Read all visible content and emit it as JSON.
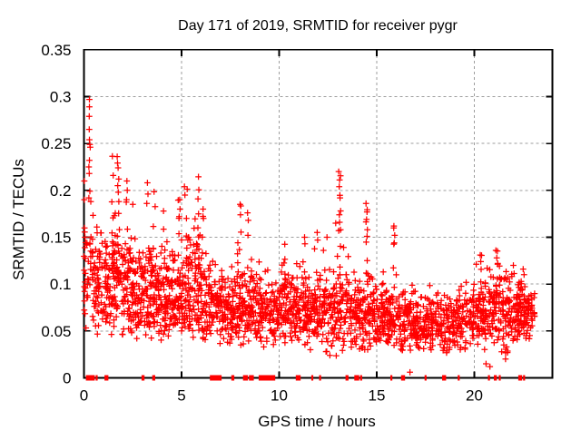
{
  "page": {
    "background": "#ffffff"
  },
  "chart_data": {
    "type": "scatter",
    "title": "Day 171 of 2019, SRMTID for receiver pygr",
    "xlabel": "GPS time / hours",
    "ylabel": "SRMTID / TECUs",
    "xlim": [
      0,
      24
    ],
    "ylim": [
      0,
      0.35
    ],
    "xticks": [
      {
        "v": 0,
        "label": "0"
      },
      {
        "v": 5,
        "label": "5"
      },
      {
        "v": 10,
        "label": "10"
      },
      {
        "v": 15,
        "label": "15"
      },
      {
        "v": 20,
        "label": "20"
      }
    ],
    "yticks": [
      {
        "v": 0,
        "label": "0"
      },
      {
        "v": 0.05,
        "label": "0.05"
      },
      {
        "v": 0.1,
        "label": "0.1"
      },
      {
        "v": 0.15,
        "label": "0.15"
      },
      {
        "v": 0.2,
        "label": "0.2"
      },
      {
        "v": 0.25,
        "label": "0.25"
      },
      {
        "v": 0.3,
        "label": "0.3"
      },
      {
        "v": 0.35,
        "label": "0.35"
      }
    ],
    "grid": true,
    "legend": "none",
    "marker": {
      "symbol": "plus",
      "color": "#ff0000",
      "size": 7
    },
    "axis_color": "#000000",
    "grid_color": "#9e9e9e",
    "seed": 20190171,
    "cloud_bands": [
      [
        0.0,
        0.5,
        45,
        0.115,
        0.035,
        0.05,
        0.19
      ],
      [
        0.5,
        1.0,
        55,
        0.1,
        0.03,
        0.045,
        0.175
      ],
      [
        1.0,
        1.5,
        60,
        0.1,
        0.03,
        0.045,
        0.19
      ],
      [
        1.5,
        2.0,
        60,
        0.1,
        0.032,
        0.045,
        0.2
      ],
      [
        2.0,
        2.5,
        60,
        0.095,
        0.03,
        0.04,
        0.18
      ],
      [
        2.5,
        3.0,
        60,
        0.09,
        0.028,
        0.04,
        0.17
      ],
      [
        3.0,
        3.5,
        60,
        0.09,
        0.028,
        0.04,
        0.17
      ],
      [
        3.5,
        4.0,
        60,
        0.088,
        0.028,
        0.04,
        0.18
      ],
      [
        4.0,
        4.5,
        60,
        0.088,
        0.026,
        0.04,
        0.17
      ],
      [
        4.5,
        5.0,
        60,
        0.09,
        0.028,
        0.04,
        0.18
      ],
      [
        5.0,
        5.5,
        60,
        0.092,
        0.03,
        0.04,
        0.19
      ],
      [
        5.5,
        6.0,
        60,
        0.095,
        0.032,
        0.04,
        0.2
      ],
      [
        6.0,
        6.5,
        55,
        0.08,
        0.025,
        0.035,
        0.16
      ],
      [
        6.5,
        7.0,
        55,
        0.075,
        0.022,
        0.035,
        0.14
      ],
      [
        7.0,
        7.5,
        55,
        0.072,
        0.022,
        0.035,
        0.14
      ],
      [
        7.5,
        8.0,
        55,
        0.072,
        0.022,
        0.035,
        0.145
      ],
      [
        8.0,
        8.5,
        55,
        0.075,
        0.024,
        0.035,
        0.16
      ],
      [
        8.5,
        9.0,
        55,
        0.072,
        0.022,
        0.035,
        0.14
      ],
      [
        9.0,
        9.5,
        50,
        0.068,
        0.02,
        0.03,
        0.13
      ],
      [
        9.5,
        10.0,
        50,
        0.068,
        0.02,
        0.03,
        0.12
      ],
      [
        10.0,
        10.5,
        55,
        0.072,
        0.022,
        0.035,
        0.14
      ],
      [
        10.5,
        11.0,
        55,
        0.072,
        0.022,
        0.035,
        0.13
      ],
      [
        11.0,
        11.5,
        55,
        0.075,
        0.022,
        0.035,
        0.15
      ],
      [
        11.5,
        12.0,
        55,
        0.072,
        0.022,
        0.022,
        0.15
      ],
      [
        12.0,
        12.5,
        50,
        0.068,
        0.02,
        0.022,
        0.14
      ],
      [
        12.5,
        13.0,
        50,
        0.07,
        0.022,
        0.022,
        0.15
      ],
      [
        13.0,
        13.5,
        50,
        0.072,
        0.024,
        0.025,
        0.16
      ],
      [
        13.5,
        14.0,
        50,
        0.068,
        0.02,
        0.03,
        0.13
      ],
      [
        14.0,
        14.5,
        55,
        0.068,
        0.02,
        0.03,
        0.14
      ],
      [
        14.5,
        15.0,
        55,
        0.068,
        0.022,
        0.03,
        0.15
      ],
      [
        15.0,
        15.5,
        55,
        0.065,
        0.02,
        0.03,
        0.12
      ],
      [
        15.5,
        16.0,
        55,
        0.065,
        0.02,
        0.028,
        0.14
      ],
      [
        16.0,
        16.5,
        50,
        0.06,
        0.018,
        0.028,
        0.11
      ],
      [
        16.5,
        17.0,
        50,
        0.06,
        0.018,
        0.025,
        0.11
      ],
      [
        17.0,
        17.5,
        50,
        0.058,
        0.018,
        0.025,
        0.11
      ],
      [
        17.5,
        18.0,
        50,
        0.058,
        0.018,
        0.025,
        0.1
      ],
      [
        18.0,
        18.5,
        48,
        0.058,
        0.016,
        0.025,
        0.1
      ],
      [
        18.5,
        19.0,
        48,
        0.06,
        0.016,
        0.025,
        0.1
      ],
      [
        19.0,
        19.5,
        48,
        0.062,
        0.018,
        0.025,
        0.11
      ],
      [
        19.5,
        20.0,
        48,
        0.065,
        0.018,
        0.03,
        0.11
      ],
      [
        20.0,
        20.5,
        50,
        0.07,
        0.02,
        0.03,
        0.125
      ],
      [
        20.5,
        21.0,
        50,
        0.07,
        0.02,
        0.02,
        0.12
      ],
      [
        21.0,
        21.5,
        50,
        0.075,
        0.022,
        0.015,
        0.135
      ],
      [
        21.5,
        22.0,
        50,
        0.07,
        0.024,
        0.015,
        0.12
      ],
      [
        22.0,
        22.5,
        60,
        0.075,
        0.018,
        0.04,
        0.115
      ],
      [
        22.5,
        23.1,
        60,
        0.072,
        0.016,
        0.04,
        0.11
      ]
    ],
    "spike_columns": [
      [
        1.45,
        6,
        0.125,
        0.235
      ],
      [
        1.75,
        5,
        0.12,
        0.19
      ],
      [
        2.2,
        4,
        0.115,
        0.185
      ],
      [
        3.6,
        5,
        0.115,
        0.2
      ],
      [
        4.1,
        4,
        0.11,
        0.18
      ],
      [
        4.85,
        5,
        0.115,
        0.186
      ],
      [
        5.3,
        4,
        0.12,
        0.2
      ],
      [
        5.85,
        8,
        0.12,
        0.215
      ],
      [
        6.05,
        4,
        0.11,
        0.175
      ],
      [
        7.9,
        4,
        0.1,
        0.145
      ],
      [
        8.0,
        4,
        0.11,
        0.18
      ],
      [
        10.3,
        4,
        0.1,
        0.14
      ],
      [
        13.1,
        6,
        0.12,
        0.215
      ],
      [
        14.5,
        5,
        0.11,
        0.18
      ],
      [
        15.9,
        4,
        0.1,
        0.158
      ],
      [
        20.35,
        4,
        0.095,
        0.128
      ],
      [
        21.15,
        4,
        0.095,
        0.133
      ]
    ],
    "outlier_points": [
      [
        0.02,
        0.21
      ],
      [
        0.02,
        0.19
      ],
      [
        0.03,
        0.16
      ],
      [
        0.05,
        0.15
      ],
      [
        0.28,
        0.297
      ],
      [
        0.28,
        0.289
      ],
      [
        0.27,
        0.279
      ],
      [
        0.27,
        0.265
      ],
      [
        0.28,
        0.254
      ],
      [
        0.3,
        0.249
      ],
      [
        0.32,
        0.246
      ],
      [
        0.28,
        0.232
      ],
      [
        0.25,
        0.225
      ],
      [
        0.27,
        0.218
      ],
      [
        0.3,
        0.199
      ],
      [
        0.25,
        0.192
      ],
      [
        0.35,
        0.188
      ],
      [
        1.7,
        0.236
      ],
      [
        1.72,
        0.229
      ],
      [
        1.75,
        0.224
      ],
      [
        1.78,
        0.212
      ],
      [
        1.73,
        0.205
      ],
      [
        1.76,
        0.198
      ],
      [
        2.2,
        0.21
      ],
      [
        2.22,
        0.2
      ],
      [
        2.18,
        0.19
      ],
      [
        2.5,
        0.185
      ],
      [
        3.25,
        0.208
      ],
      [
        3.28,
        0.196
      ],
      [
        3.22,
        0.186
      ],
      [
        4.9,
        0.19
      ],
      [
        4.92,
        0.18
      ],
      [
        4.88,
        0.172
      ],
      [
        5.15,
        0.204
      ],
      [
        5.17,
        0.195
      ],
      [
        6.1,
        0.18
      ],
      [
        6.12,
        0.17
      ],
      [
        8.0,
        0.185
      ],
      [
        8.02,
        0.174
      ],
      [
        8.38,
        0.176
      ],
      [
        8.42,
        0.168
      ],
      [
        8.4,
        0.152
      ],
      [
        11.3,
        0.15
      ],
      [
        11.32,
        0.143
      ],
      [
        11.95,
        0.155
      ],
      [
        11.97,
        0.147
      ],
      [
        12.45,
        0.15
      ],
      [
        12.9,
        0.165
      ],
      [
        13.05,
        0.22
      ],
      [
        13.1,
        0.211
      ],
      [
        13.08,
        0.204
      ],
      [
        13.12,
        0.192
      ],
      [
        13.15,
        0.178
      ],
      [
        13.1,
        0.166
      ],
      [
        13.05,
        0.157
      ],
      [
        14.45,
        0.186
      ],
      [
        14.5,
        0.177
      ],
      [
        14.48,
        0.169
      ],
      [
        14.52,
        0.158
      ],
      [
        14.5,
        0.151
      ],
      [
        15.88,
        0.162
      ],
      [
        15.92,
        0.152
      ],
      [
        15.9,
        0.144
      ],
      [
        20.3,
        0.131
      ],
      [
        20.33,
        0.124
      ],
      [
        21.1,
        0.136
      ],
      [
        21.15,
        0.128
      ],
      [
        21.2,
        0.122
      ],
      [
        22.0,
        0.12
      ],
      [
        22.5,
        0.116
      ],
      [
        22.55,
        0.11
      ],
      [
        16.7,
        0.006
      ],
      [
        20.8,
        0.012
      ],
      [
        20.6,
        0.015
      ],
      [
        21.6,
        0.02
      ],
      [
        21.65,
        0.033
      ],
      [
        21.7,
        0.027
      ],
      [
        12.4,
        0.028
      ],
      [
        12.6,
        0.024
      ],
      [
        11.6,
        0.03
      ]
    ],
    "zero_line_points_x": [
      0.15,
      0.2,
      0.25,
      0.3,
      0.35,
      0.4,
      0.45,
      0.5,
      0.65,
      1.1,
      1.15,
      1.2,
      3.0,
      3.05,
      3.55,
      3.6,
      6.5,
      6.55,
      6.6,
      6.7,
      6.8,
      6.9,
      7.0,
      7.6,
      7.65,
      8.2,
      8.25,
      8.35,
      8.5,
      8.55,
      8.65,
      9.0,
      9.1,
      9.2,
      9.25,
      9.35,
      9.45,
      9.55,
      9.65,
      9.75,
      10.9,
      10.95,
      11.05,
      11.7,
      12.1,
      13.45,
      13.5,
      13.9,
      13.95,
      14.05,
      14.2,
      15.75,
      16.3,
      16.4,
      17.5,
      18.4,
      18.45,
      18.5,
      19.2,
      20.75,
      21.05,
      21.1,
      21.3,
      22.3,
      22.4,
      22.55
    ]
  }
}
